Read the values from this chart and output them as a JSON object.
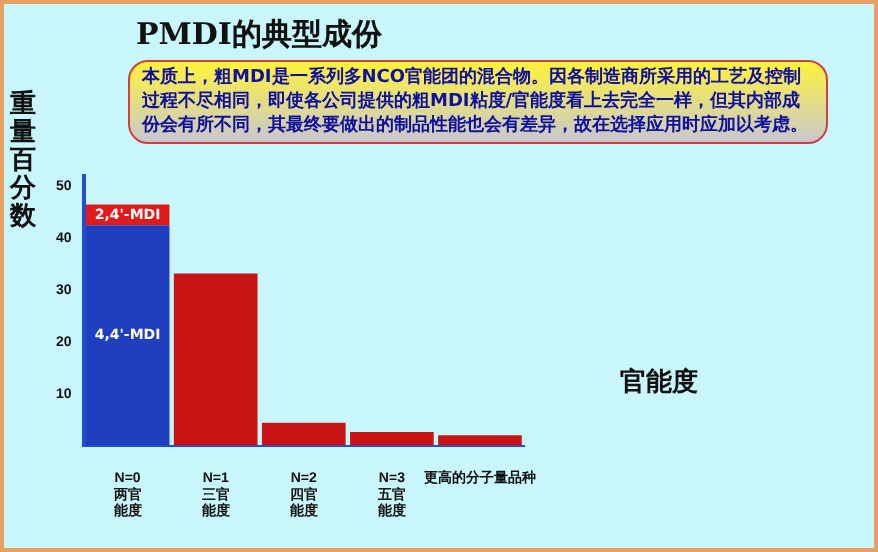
{
  "chart_data": {
    "type": "bar",
    "stacked": true,
    "title": "PMDI的典型成份",
    "ylabel": "重量百分数",
    "xlabel": "官能度",
    "annotations": [
      "本质上，粗MDI是一系列多NCO官能团的混合物。因各制造商所采用的工艺及控制过程不尽相同，即使各公司提供的粗MDI粘度/官能度看上去完全一样，但其内部成份会有所不同，其最终要做出的制品性能也会有差异，故在选择应用时应加以考虑。"
    ],
    "categories": [
      "N=0 两官能度",
      "N=1 三官能度",
      "N=2 四官能度",
      "N=3 五官能度",
      "更高的分子量品种"
    ],
    "series": [
      {
        "name": "4,4'-MDI",
        "color": "#1f3fbf",
        "values": [
          42.5,
          null,
          null,
          null,
          null
        ]
      },
      {
        "name": "2,4'-MDI",
        "color": "#e01b1b",
        "values": [
          4,
          null,
          null,
          null,
          null
        ]
      },
      {
        "color": "#c81414",
        "values": [
          null,
          33.2,
          4.4,
          2.6,
          2.0
        ]
      }
    ],
    "ylim": [
      0,
      52
    ],
    "yticks": [
      10,
      20,
      30,
      40,
      50
    ],
    "grid": false,
    "legend": false
  }
}
